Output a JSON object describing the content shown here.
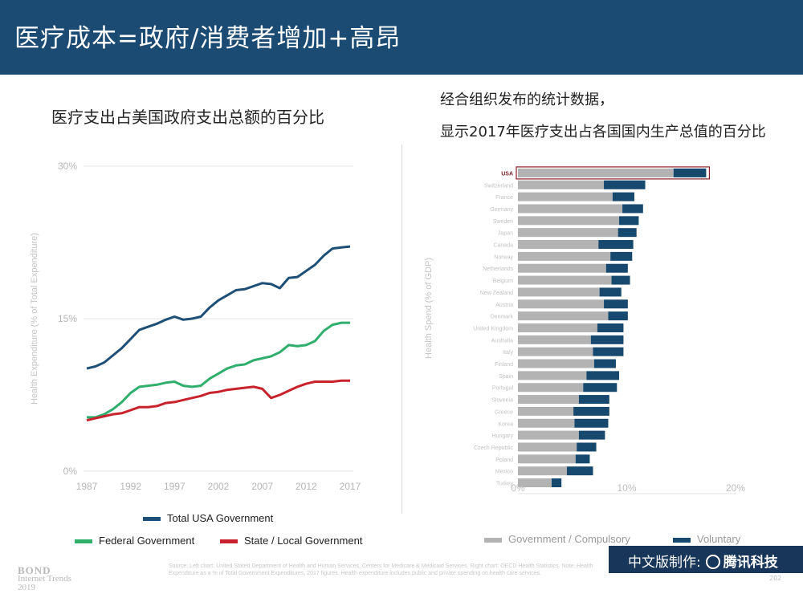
{
  "header": {
    "title": "医疗成本=政府/消费者增加+高昂"
  },
  "left": {
    "title": "医疗支出占美国政府支出总额的百分比"
  },
  "right": {
    "title_line1": "经合组织发布的统计数据，",
    "title_line2": "显示2017年医疗支出占各国国内生产总值的百分比"
  },
  "colors": {
    "header_bg": "#1b4a73",
    "total": "#1d4f77",
    "federal": "#2fae6c",
    "state": "#c8232c",
    "gov": "#b3b3b3",
    "voluntary": "#17496f",
    "badge_bg": "#17365a"
  },
  "legend_left": {
    "total": "Total USA Government",
    "federal": "Federal Government",
    "state": "State / Local Government"
  },
  "legend_right": {
    "gov": "Government / Compulsory",
    "voluntary": "Voluntary"
  },
  "footer": {
    "bond_line1": "BOND",
    "bond_line2": "Internet Trends",
    "bond_line3": "2019",
    "source": "Source: Left chart: United Stated Department of Health and Human Services, Centers for Medicare & Medicaid Services. Right chart: OECD Health Statistics. Note: Health Expenditure as a % of Total Government Expenditures, 2017 figures. Health expenditure includes public and private spending on health care services.",
    "badge_label": "中文版制作:",
    "badge_brand": "腾讯科技",
    "page_number": "202"
  },
  "chart_data": [
    {
      "type": "line",
      "title": "医疗支出占美国政府支出总额的百分比",
      "xlabel": "",
      "ylabel": "Health Expenditure (% of Total Expenditure)",
      "x": [
        1987,
        1988,
        1989,
        1990,
        1991,
        1992,
        1993,
        1994,
        1995,
        1996,
        1997,
        1998,
        1999,
        2000,
        2001,
        2002,
        2003,
        2004,
        2005,
        2006,
        2007,
        2008,
        2009,
        2010,
        2011,
        2012,
        2013,
        2014,
        2015,
        2016,
        2017
      ],
      "xticks": [
        "1987",
        "1992",
        "1997",
        "2002",
        "2007",
        "2012",
        "2017"
      ],
      "yticks": [
        "0%",
        "15%",
        "30%"
      ],
      "ylim": [
        0,
        30
      ],
      "series": [
        {
          "name": "Total USA Government",
          "color": "#1d4f77",
          "values": [
            10.1,
            10.3,
            10.7,
            11.4,
            12.1,
            13.0,
            13.9,
            14.2,
            14.5,
            14.9,
            15.2,
            14.9,
            15.0,
            15.2,
            16.1,
            16.8,
            17.3,
            17.8,
            17.9,
            18.2,
            18.5,
            18.4,
            18.0,
            19.0,
            19.1,
            19.7,
            20.3,
            21.2,
            21.9,
            22.0,
            22.1
          ]
        },
        {
          "name": "Federal Government",
          "color": "#2fae6c",
          "values": [
            5.3,
            5.3,
            5.6,
            6.1,
            6.8,
            7.7,
            8.3,
            8.4,
            8.5,
            8.7,
            8.8,
            8.4,
            8.3,
            8.4,
            9.1,
            9.6,
            10.1,
            10.4,
            10.5,
            10.9,
            11.1,
            11.3,
            11.7,
            12.4,
            12.3,
            12.4,
            12.8,
            13.8,
            14.4,
            14.6,
            14.6
          ]
        },
        {
          "name": "State / Local Government",
          "color": "#c8232c",
          "values": [
            5.0,
            5.2,
            5.4,
            5.6,
            5.7,
            6.0,
            6.3,
            6.3,
            6.4,
            6.7,
            6.8,
            7.0,
            7.2,
            7.4,
            7.7,
            7.8,
            8.0,
            8.1,
            8.2,
            8.3,
            8.1,
            7.2,
            7.5,
            7.9,
            8.3,
            8.6,
            8.8,
            8.8,
            8.8,
            8.9,
            8.9
          ]
        }
      ]
    },
    {
      "type": "bar",
      "stacked": true,
      "orientation": "horizontal",
      "title": "显示2017年医疗支出占各国国内生产总值的百分比",
      "xlabel": "",
      "ylabel": "Health Spend (% of GDP)",
      "xticks": [
        "0%",
        "10%",
        "20%"
      ],
      "xlim": [
        0,
        20
      ],
      "categories": [
        "USA",
        "Switzerland",
        "France",
        "Germany",
        "Sweden",
        "Japan",
        "Canada",
        "Norway",
        "Netherlands",
        "Belgium",
        "New Zealand",
        "Austria",
        "Denmark",
        "United Kingdom",
        "Australia",
        "Italy",
        "Finland",
        "Spain",
        "Portugal",
        "Slovenia",
        "Greece",
        "Korea",
        "Hungary",
        "Czech Republic",
        "Poland",
        "Mexico",
        "Turkey"
      ],
      "highlight": "USA",
      "series": [
        {
          "name": "Government / Compulsory",
          "color": "#b3b3b3",
          "values": [
            14.3,
            7.9,
            8.7,
            9.6,
            9.3,
            9.2,
            7.4,
            8.5,
            8.1,
            8.6,
            7.5,
            7.9,
            8.3,
            7.3,
            6.7,
            6.9,
            7.0,
            6.3,
            6.0,
            5.6,
            5.1,
            5.2,
            5.6,
            5.4,
            5.3,
            4.5,
            3.1
          ]
        },
        {
          "name": "Voluntary",
          "color": "#17496f",
          "values": [
            3.0,
            3.8,
            2.0,
            1.9,
            1.8,
            1.7,
            3.2,
            2.0,
            2.0,
            1.7,
            2.0,
            2.2,
            1.8,
            2.4,
            3.0,
            2.8,
            2.0,
            3.0,
            3.1,
            2.8,
            3.3,
            3.1,
            2.4,
            1.8,
            1.3,
            2.4,
            0.9
          ]
        }
      ]
    }
  ]
}
